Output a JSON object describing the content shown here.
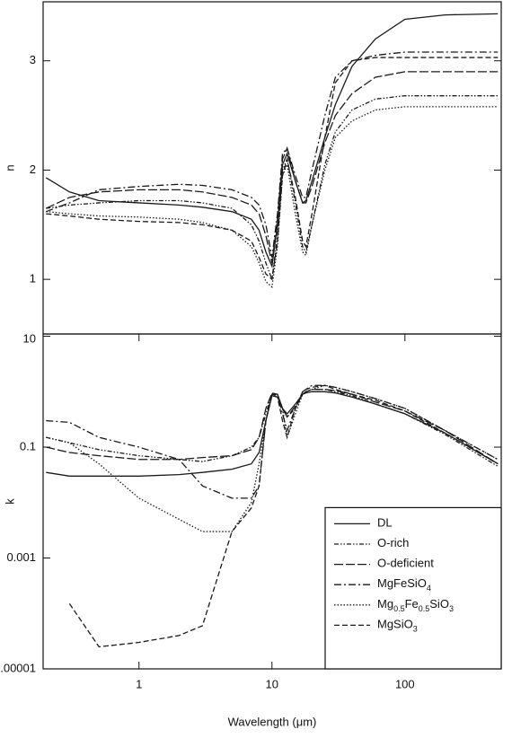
{
  "chart_data": [
    {
      "type": "line",
      "ylabel": "n",
      "xlog": true,
      "xlim": [
        0.19,
        530
      ],
      "ylim": [
        0.5,
        3.54
      ],
      "yticks": [
        1,
        2,
        3
      ],
      "x": [
        0.2,
        0.3,
        0.5,
        1,
        2,
        3,
        5,
        7,
        8,
        9,
        10,
        11,
        12,
        13,
        15,
        17,
        18,
        20,
        25,
        30,
        40,
        60,
        100,
        200,
        500
      ],
      "series": [
        {
          "color": "#1a1a1a",
          "dash": "solid",
          "values": [
            1.93,
            1.8,
            1.72,
            1.7,
            1.68,
            1.66,
            1.62,
            1.55,
            1.45,
            1.25,
            1.12,
            1.5,
            2.05,
            2.15,
            1.9,
            1.7,
            1.72,
            1.9,
            2.3,
            2.6,
            2.95,
            3.2,
            3.38,
            3.42,
            3.43
          ]
        },
        {
          "color": "#1a1a1a",
          "dash": "dash-dot-dot",
          "values": [
            1.65,
            1.68,
            1.7,
            1.72,
            1.72,
            1.7,
            1.65,
            1.5,
            1.35,
            1.15,
            1.0,
            1.4,
            2.0,
            2.1,
            1.7,
            1.3,
            1.25,
            1.5,
            2.05,
            2.35,
            2.55,
            2.65,
            2.68,
            2.68,
            2.68
          ]
        },
        {
          "color": "#1a1a1a",
          "dash": "long-dash",
          "values": [
            1.65,
            1.75,
            1.8,
            1.82,
            1.82,
            1.8,
            1.75,
            1.68,
            1.6,
            1.4,
            1.15,
            1.55,
            2.1,
            2.2,
            1.9,
            1.7,
            1.7,
            1.85,
            2.25,
            2.5,
            2.7,
            2.85,
            2.9,
            2.9,
            2.9
          ]
        },
        {
          "color": "#1a1a1a",
          "dash": "dash-dot",
          "values": [
            1.62,
            1.7,
            1.82,
            1.85,
            1.87,
            1.86,
            1.82,
            1.75,
            1.68,
            1.5,
            1.2,
            1.6,
            2.15,
            2.2,
            1.95,
            1.75,
            1.75,
            2.0,
            2.5,
            2.85,
            3.0,
            3.05,
            3.08,
            3.08,
            3.08
          ]
        },
        {
          "color": "#1a1a1a",
          "dash": "dot",
          "values": [
            1.62,
            1.6,
            1.58,
            1.57,
            1.55,
            1.52,
            1.45,
            1.3,
            1.15,
            0.98,
            0.93,
            1.3,
            1.95,
            2.05,
            1.6,
            1.25,
            1.22,
            1.5,
            2.0,
            2.3,
            2.45,
            2.55,
            2.58,
            2.58,
            2.58
          ]
        },
        {
          "color": "#1a1a1a",
          "dash": "dash",
          "values": [
            1.6,
            1.58,
            1.55,
            1.53,
            1.52,
            1.5,
            1.45,
            1.35,
            1.2,
            1.05,
            1.0,
            1.35,
            1.95,
            2.1,
            1.75,
            1.35,
            1.3,
            1.6,
            2.3,
            2.8,
            3.0,
            3.03,
            3.03,
            3.03,
            3.03
          ]
        }
      ]
    },
    {
      "type": "line",
      "ylabel": "k",
      "xlabel": "Wavelength (μm)",
      "xlog": true,
      "ylog": true,
      "xlim": [
        0.19,
        530
      ],
      "ylim": [
        1e-05,
        11
      ],
      "xticks": [
        1,
        10,
        100
      ],
      "yticks": [
        1e-05,
        0.001,
        0.1,
        10
      ],
      "legend": "lower-right",
      "x": [
        0.2,
        0.3,
        0.5,
        1,
        2,
        3,
        5,
        7,
        8,
        9,
        10,
        11,
        12,
        13,
        15,
        17,
        18,
        20,
        25,
        30,
        40,
        60,
        100,
        200,
        500
      ],
      "series": [
        {
          "name": "DL",
          "color": "#1a1a1a",
          "dash": "solid",
          "values": [
            0.035,
            0.03,
            0.03,
            0.03,
            0.032,
            0.035,
            0.04,
            0.05,
            0.08,
            0.3,
            0.85,
            0.8,
            0.5,
            0.4,
            0.6,
            0.9,
            0.95,
            1.0,
            1.0,
            0.95,
            0.8,
            0.6,
            0.4,
            0.18,
            0.05
          ]
        },
        {
          "name": "O-rich",
          "color": "#1a1a1a",
          "dash": "dash-dot-dot",
          "values": [
            0.15,
            0.12,
            0.09,
            0.07,
            0.06,
            0.055,
            0.07,
            0.1,
            0.15,
            0.4,
            0.9,
            0.9,
            0.5,
            0.35,
            0.5,
            0.9,
            1.0,
            1.1,
            1.1,
            1.0,
            0.85,
            0.6,
            0.4,
            0.17,
            0.045
          ]
        },
        {
          "name": "O-deficient",
          "color": "#1a1a1a",
          "dash": "long-dash",
          "values": [
            0.1,
            0.08,
            0.07,
            0.06,
            0.06,
            0.065,
            0.07,
            0.09,
            0.15,
            0.5,
            0.95,
            0.9,
            0.5,
            0.35,
            0.55,
            0.9,
            1.0,
            1.1,
            1.1,
            1.05,
            0.9,
            0.65,
            0.45,
            0.2,
            0.05
          ]
        },
        {
          "name": "MgFeSiO4",
          "color": "#1a1a1a",
          "dash": "dash-dot",
          "values": [
            0.3,
            0.28,
            0.15,
            0.1,
            0.06,
            0.02,
            0.012,
            0.012,
            0.02,
            0.3,
            0.9,
            0.85,
            0.4,
            0.2,
            0.5,
            1.0,
            1.1,
            1.3,
            1.3,
            1.2,
            1.0,
            0.75,
            0.5,
            0.2,
            0.06
          ]
        },
        {
          "name": "Mg0.5Fe0.5SiO3",
          "color": "#1a1a1a",
          "dash": "dot",
          "values": [
            0.15,
            0.12,
            0.05,
            0.012,
            0.005,
            0.003,
            0.003,
            0.01,
            0.05,
            0.3,
            0.9,
            0.9,
            0.5,
            0.15,
            0.4,
            0.9,
            1.0,
            1.1,
            1.3,
            1.2,
            1.0,
            0.75,
            0.5,
            0.2,
            0.06
          ]
        },
        {
          "name": "MgSiO3",
          "color": "#1a1a1a",
          "dash": "dash",
          "values": [
            null,
            0.00015,
            2.5e-05,
            3e-05,
            4e-05,
            6e-05,
            0.003,
            0.008,
            0.02,
            0.3,
            0.85,
            0.8,
            0.3,
            0.15,
            0.5,
            1.0,
            1.1,
            1.2,
            1.3,
            1.1,
            0.9,
            0.7,
            0.45,
            0.18,
            0.05
          ]
        }
      ]
    }
  ]
}
